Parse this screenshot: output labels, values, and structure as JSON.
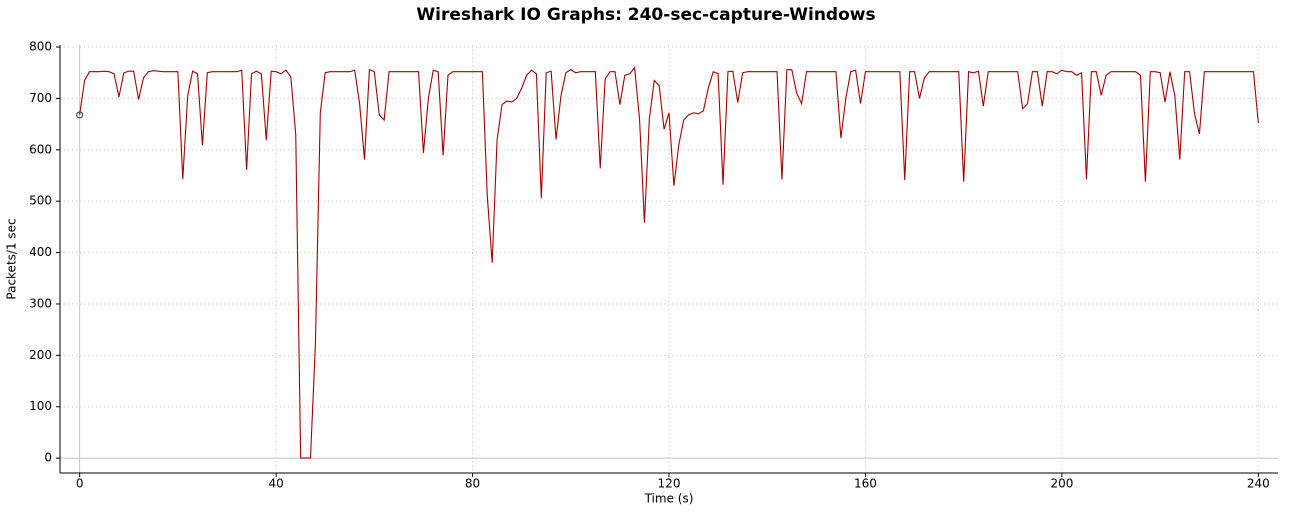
{
  "chart_data": {
    "type": "line",
    "title": "Wireshark IO Graphs: 240-sec-capture-Windows",
    "x_label": "Time (s)",
    "y_label": "Packets/1 sec",
    "x": [
      0,
      1,
      2,
      3,
      4,
      5,
      6,
      7,
      8,
      9,
      10,
      11,
      12,
      13,
      14,
      15,
      16,
      17,
      18,
      19,
      20,
      21,
      22,
      23,
      24,
      25,
      26,
      27,
      28,
      29,
      30,
      31,
      32,
      33,
      34,
      35,
      36,
      37,
      38,
      39,
      40,
      41,
      42,
      43,
      44,
      45,
      46,
      47,
      48,
      49,
      50,
      51,
      52,
      53,
      54,
      55,
      56,
      57,
      58,
      59,
      60,
      61,
      62,
      63,
      64,
      65,
      66,
      67,
      68,
      69,
      70,
      71,
      72,
      73,
      74,
      75,
      76,
      77,
      78,
      79,
      80,
      81,
      82,
      83,
      84,
      85,
      86,
      87,
      88,
      89,
      90,
      91,
      92,
      93,
      94,
      95,
      96,
      97,
      98,
      99,
      100,
      101,
      102,
      103,
      104,
      105,
      106,
      107,
      108,
      109,
      110,
      111,
      112,
      113,
      114,
      115,
      116,
      117,
      118,
      119,
      120,
      121,
      122,
      123,
      124,
      125,
      126,
      127,
      128,
      129,
      130,
      131,
      132,
      133,
      134,
      135,
      136,
      137,
      138,
      139,
      140,
      141,
      142,
      143,
      144,
      145,
      146,
      147,
      148,
      149,
      150,
      151,
      152,
      153,
      154,
      155,
      156,
      157,
      158,
      159,
      160,
      161,
      162,
      163,
      164,
      165,
      166,
      167,
      168,
      169,
      170,
      171,
      172,
      173,
      174,
      175,
      176,
      177,
      178,
      179,
      180,
      181,
      182,
      183,
      184,
      185,
      186,
      187,
      188,
      189,
      190,
      191,
      192,
      193,
      194,
      195,
      196,
      197,
      198,
      199,
      200,
      201,
      202,
      203,
      204,
      205,
      206,
      207,
      208,
      209,
      210,
      211,
      212,
      213,
      214,
      215,
      216,
      217,
      218,
      219,
      220,
      221,
      222,
      223,
      224,
      225,
      226,
      227,
      228,
      229,
      230,
      231,
      232,
      233,
      234,
      235,
      236,
      237,
      238,
      239,
      240
    ],
    "series": [
      {
        "name": "Packets",
        "color": "#a50000",
        "values": [
          668,
          735,
          752,
          752,
          752,
          753,
          752,
          748,
          703,
          750,
          753,
          753,
          698,
          740,
          752,
          754,
          753,
          752,
          752,
          752,
          752,
          543,
          705,
          753,
          748,
          609,
          750,
          752,
          752,
          752,
          752,
          752,
          752,
          755,
          561,
          748,
          753,
          748,
          619,
          753,
          752,
          748,
          755,
          742,
          630,
          0,
          0,
          0,
          220,
          672,
          750,
          752,
          752,
          752,
          752,
          752,
          755,
          690,
          581,
          756,
          752,
          668,
          658,
          752,
          752,
          752,
          752,
          752,
          752,
          752,
          594,
          700,
          755,
          752,
          589,
          745,
          752,
          752,
          752,
          752,
          752,
          752,
          752,
          510,
          380,
          620,
          688,
          695,
          693,
          700,
          720,
          745,
          755,
          748,
          506,
          750,
          753,
          620,
          705,
          750,
          756,
          750,
          752,
          752,
          752,
          752,
          564,
          738,
          752,
          752,
          688,
          745,
          748,
          760,
          660,
          458,
          660,
          735,
          725,
          640,
          672,
          530,
          610,
          658,
          668,
          672,
          670,
          676,
          720,
          752,
          748,
          532,
          752,
          753,
          692,
          750,
          752,
          752,
          752,
          752,
          752,
          752,
          752,
          542,
          756,
          756,
          710,
          690,
          752,
          752,
          752,
          752,
          752,
          752,
          752,
          623,
          700,
          752,
          755,
          690,
          752,
          752,
          752,
          752,
          752,
          752,
          752,
          752,
          541,
          752,
          752,
          700,
          740,
          752,
          752,
          752,
          752,
          752,
          752,
          752,
          538,
          752,
          750,
          753,
          685,
          752,
          752,
          752,
          752,
          752,
          752,
          752,
          680,
          690,
          752,
          752,
          685,
          752,
          752,
          748,
          755,
          752,
          752,
          745,
          750,
          543,
          752,
          752,
          706,
          745,
          752,
          752,
          752,
          752,
          752,
          752,
          745,
          538,
          752,
          752,
          750,
          693,
          752,
          705,
          581,
          752,
          752,
          670,
          631,
          752,
          752,
          752,
          752,
          752,
          752,
          752,
          752,
          752,
          752,
          752,
          652
        ]
      }
    ],
    "xlim": [
      -4,
      244
    ],
    "ylim": [
      -29,
      804
    ],
    "xticks": [
      0,
      40,
      80,
      120,
      160,
      200,
      240
    ],
    "yticks": [
      0,
      100,
      200,
      300,
      400,
      500,
      600,
      700,
      800
    ],
    "grid": true
  }
}
